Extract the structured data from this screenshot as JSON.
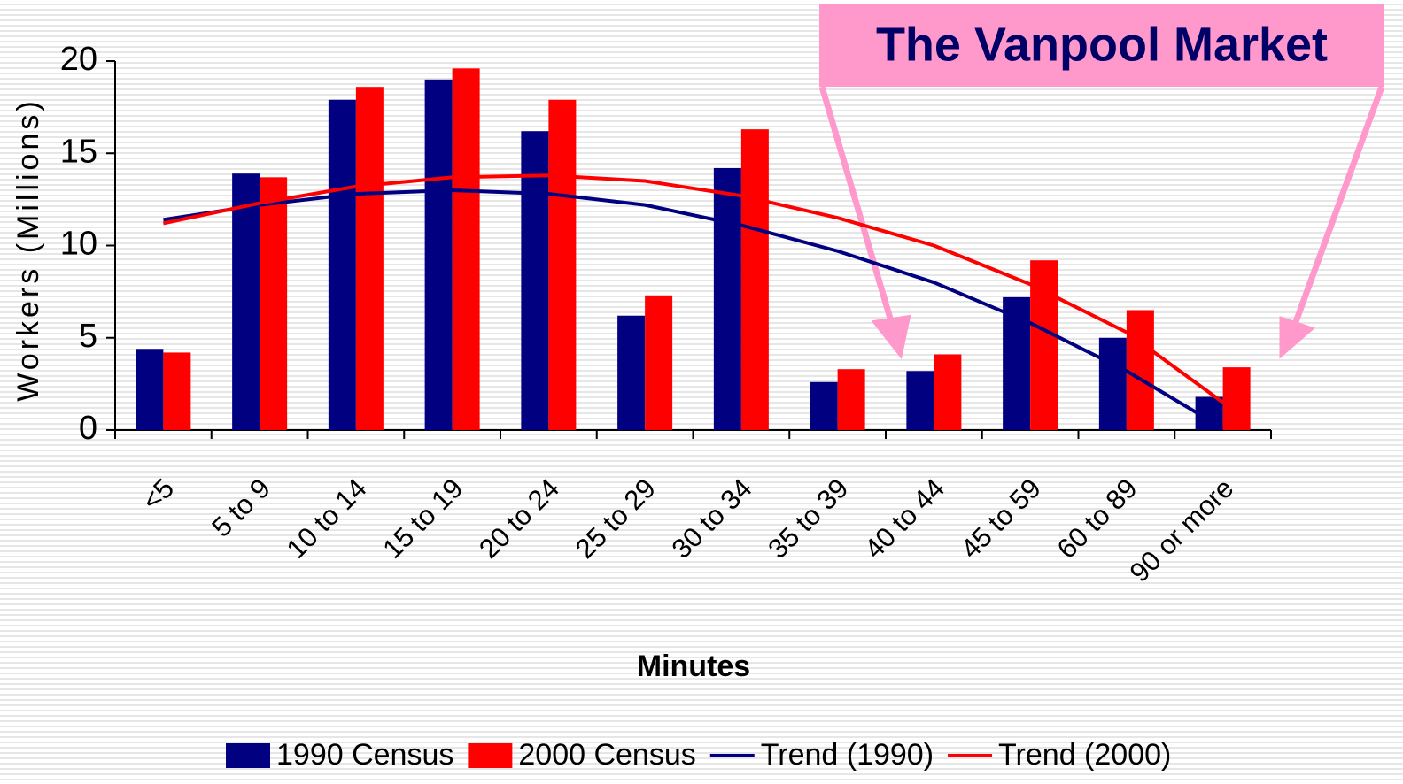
{
  "chart_data": {
    "type": "bar",
    "title": "The Vanpool Market",
    "x_label": "Minutes",
    "y_label": "Workers (Millions)",
    "categories": [
      "<5",
      "5 to 9",
      "10 to 14",
      "15 to 19",
      "20 to 24",
      "25 to 29",
      "30 to 34",
      "35 to 39",
      "40 to 44",
      "45 to 59",
      "60 to 89",
      "90 or more"
    ],
    "series": [
      {
        "name": "1990 Census",
        "type": "bar",
        "color": "#000080",
        "values": [
          4.4,
          13.9,
          17.9,
          19.0,
          16.2,
          6.2,
          14.2,
          2.6,
          3.2,
          7.2,
          5.0,
          1.8
        ]
      },
      {
        "name": "2000 Census",
        "type": "bar",
        "color": "#ff0000",
        "values": [
          4.2,
          13.7,
          18.6,
          19.6,
          17.9,
          7.3,
          16.3,
          3.3,
          4.1,
          9.2,
          6.5,
          3.4
        ]
      },
      {
        "name": "Trend (1990)",
        "type": "line",
        "color": "#000080",
        "values": [
          11.4,
          12.2,
          12.8,
          13.0,
          12.8,
          12.2,
          11.1,
          9.7,
          8.0,
          5.8,
          3.2,
          0.1
        ]
      },
      {
        "name": "Trend (2000)",
        "type": "line",
        "color": "#ff0000",
        "values": [
          11.2,
          12.3,
          13.2,
          13.7,
          13.8,
          13.5,
          12.7,
          11.5,
          10.0,
          7.9,
          5.3,
          1.5
        ]
      }
    ],
    "ylim": [
      0,
      20
    ],
    "yticks": [
      0,
      5,
      10,
      15,
      20
    ],
    "grid": false,
    "legend": "bottom"
  }
}
